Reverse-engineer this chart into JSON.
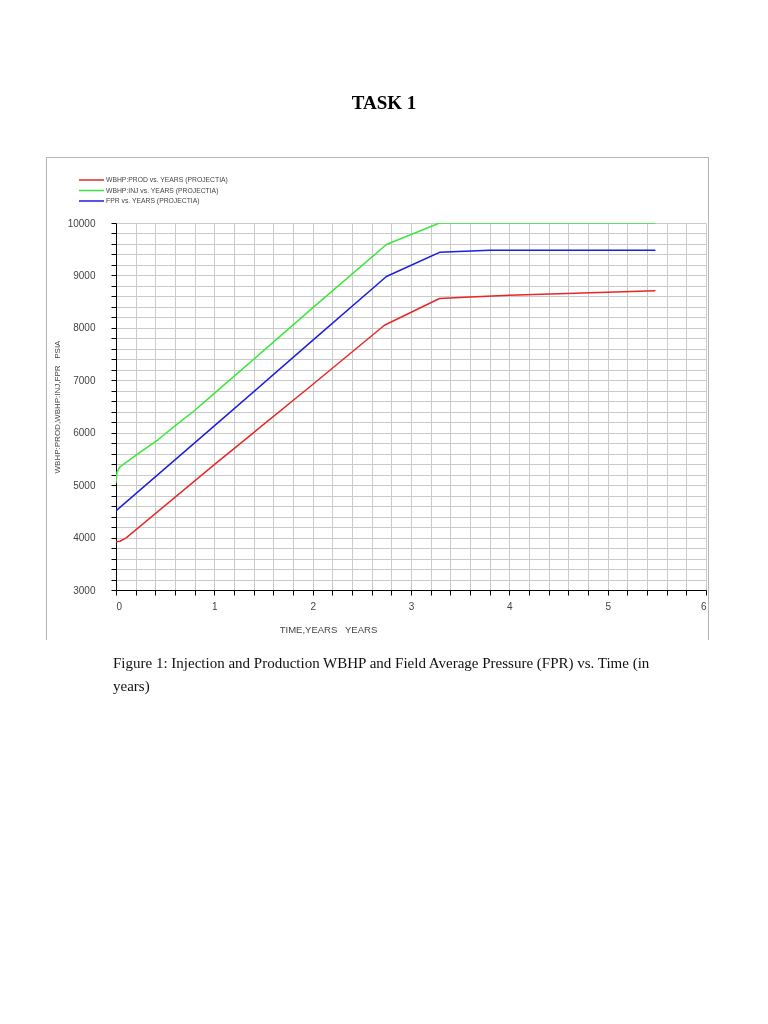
{
  "chart_data": {
    "type": "line",
    "title": "TASK 1",
    "xlabel": "TIME,YEARS   YEARS",
    "ylabel": "WBHP:PROD,WBHP:INJ,FPR   PSIA",
    "annotations": [
      "Figure 1: Injection and Production WBHP and Field Average Pressure (FPR) vs. Time (in years)"
    ],
    "xlim": [
      0,
      6
    ],
    "ylim": [
      3000,
      10000
    ],
    "xticks": [
      0,
      {
        "value": 0.2,
        "label": null
      },
      {
        "value": 0.4,
        "label": null
      },
      {
        "value": 0.6,
        "label": null
      },
      {
        "value": 0.8,
        "label": null
      },
      1,
      {
        "value": 1.2,
        "label": null
      },
      {
        "value": 1.4,
        "label": null
      },
      {
        "value": 1.6,
        "label": null
      },
      {
        "value": 1.8,
        "label": null
      },
      2,
      {
        "value": 2.2,
        "label": null
      },
      {
        "value": 2.4,
        "label": null
      },
      {
        "value": 2.6,
        "label": null
      },
      {
        "value": 2.8,
        "label": null
      },
      3,
      {
        "value": 3.2,
        "label": null
      },
      {
        "value": 3.4,
        "label": null
      },
      {
        "value": 3.6,
        "label": null
      },
      {
        "value": 3.8,
        "label": null
      },
      4,
      {
        "value": 4.2,
        "label": null
      },
      {
        "value": 4.4,
        "label": null
      },
      {
        "value": 4.6,
        "label": null
      },
      {
        "value": 4.8,
        "label": null
      },
      5,
      {
        "value": 5.2,
        "label": null
      },
      {
        "value": 5.4,
        "label": null
      },
      {
        "value": 5.6,
        "label": null
      },
      {
        "value": 5.8,
        "label": null
      },
      6
    ],
    "yticks": [
      3000,
      {
        "value": 3200,
        "label": null
      },
      {
        "value": 3400,
        "label": null
      },
      {
        "value": 3600,
        "label": null
      },
      {
        "value": 3800,
        "label": null
      },
      4000,
      {
        "value": 4200,
        "label": null
      },
      {
        "value": 4400,
        "label": null
      },
      {
        "value": 4600,
        "label": null
      },
      {
        "value": 4800,
        "label": null
      },
      5000,
      {
        "value": 5200,
        "label": null
      },
      {
        "value": 5400,
        "label": null
      },
      {
        "value": 5600,
        "label": null
      },
      {
        "value": 5800,
        "label": null
      },
      6000,
      {
        "value": 6200,
        "label": null
      },
      {
        "value": 6400,
        "label": null
      },
      {
        "value": 6600,
        "label": null
      },
      {
        "value": 6800,
        "label": null
      },
      7000,
      {
        "value": 7200,
        "label": null
      },
      {
        "value": 7400,
        "label": null
      },
      {
        "value": 7600,
        "label": null
      },
      {
        "value": 7800,
        "label": null
      },
      8000,
      {
        "value": 8200,
        "label": null
      },
      {
        "value": 8400,
        "label": null
      },
      {
        "value": 8600,
        "label": null
      },
      {
        "value": 8800,
        "label": null
      },
      9000,
      {
        "value": 9200,
        "label": null
      },
      {
        "value": 9400,
        "label": null
      },
      {
        "value": 9600,
        "label": null
      },
      {
        "value": 9800,
        "label": null
      },
      10000
    ],
    "grid": true,
    "legend": "top left",
    "series": [
      {
        "name": "WBHP:PROD vs. YEARS (PROJECTIA)",
        "color": "#e62828",
        "x": [
          0,
          0.04,
          0.1,
          1,
          2,
          2.73,
          3.29,
          3.6,
          4,
          4.5,
          5,
          5.48
        ],
        "values": [
          3920,
          3930,
          3990,
          5390,
          6920,
          8050,
          8560,
          8590,
          8620,
          8650,
          8680,
          8710
        ]
      },
      {
        "name": "WBHP:INJ vs. YEARS (PROJECTIA)",
        "color": "#3ce63c",
        "x": [
          0,
          0.01,
          0.04,
          0.24,
          0.43,
          0.6,
          0.79,
          1,
          2,
          2.75,
          3.29,
          5.48
        ],
        "values": [
          5050,
          5250,
          5350,
          5620,
          5870,
          6130,
          6410,
          6750,
          8380,
          9590,
          10000,
          10000
        ]
      },
      {
        "name": "FPR vs. YEARS (PROJECTIA)",
        "color": "#1e1edc",
        "x": [
          0,
          1,
          2,
          2.75,
          3.29,
          3.8,
          5.48
        ],
        "values": [
          4510,
          6130,
          7760,
          8980,
          9440,
          9480,
          9480
        ]
      }
    ]
  }
}
